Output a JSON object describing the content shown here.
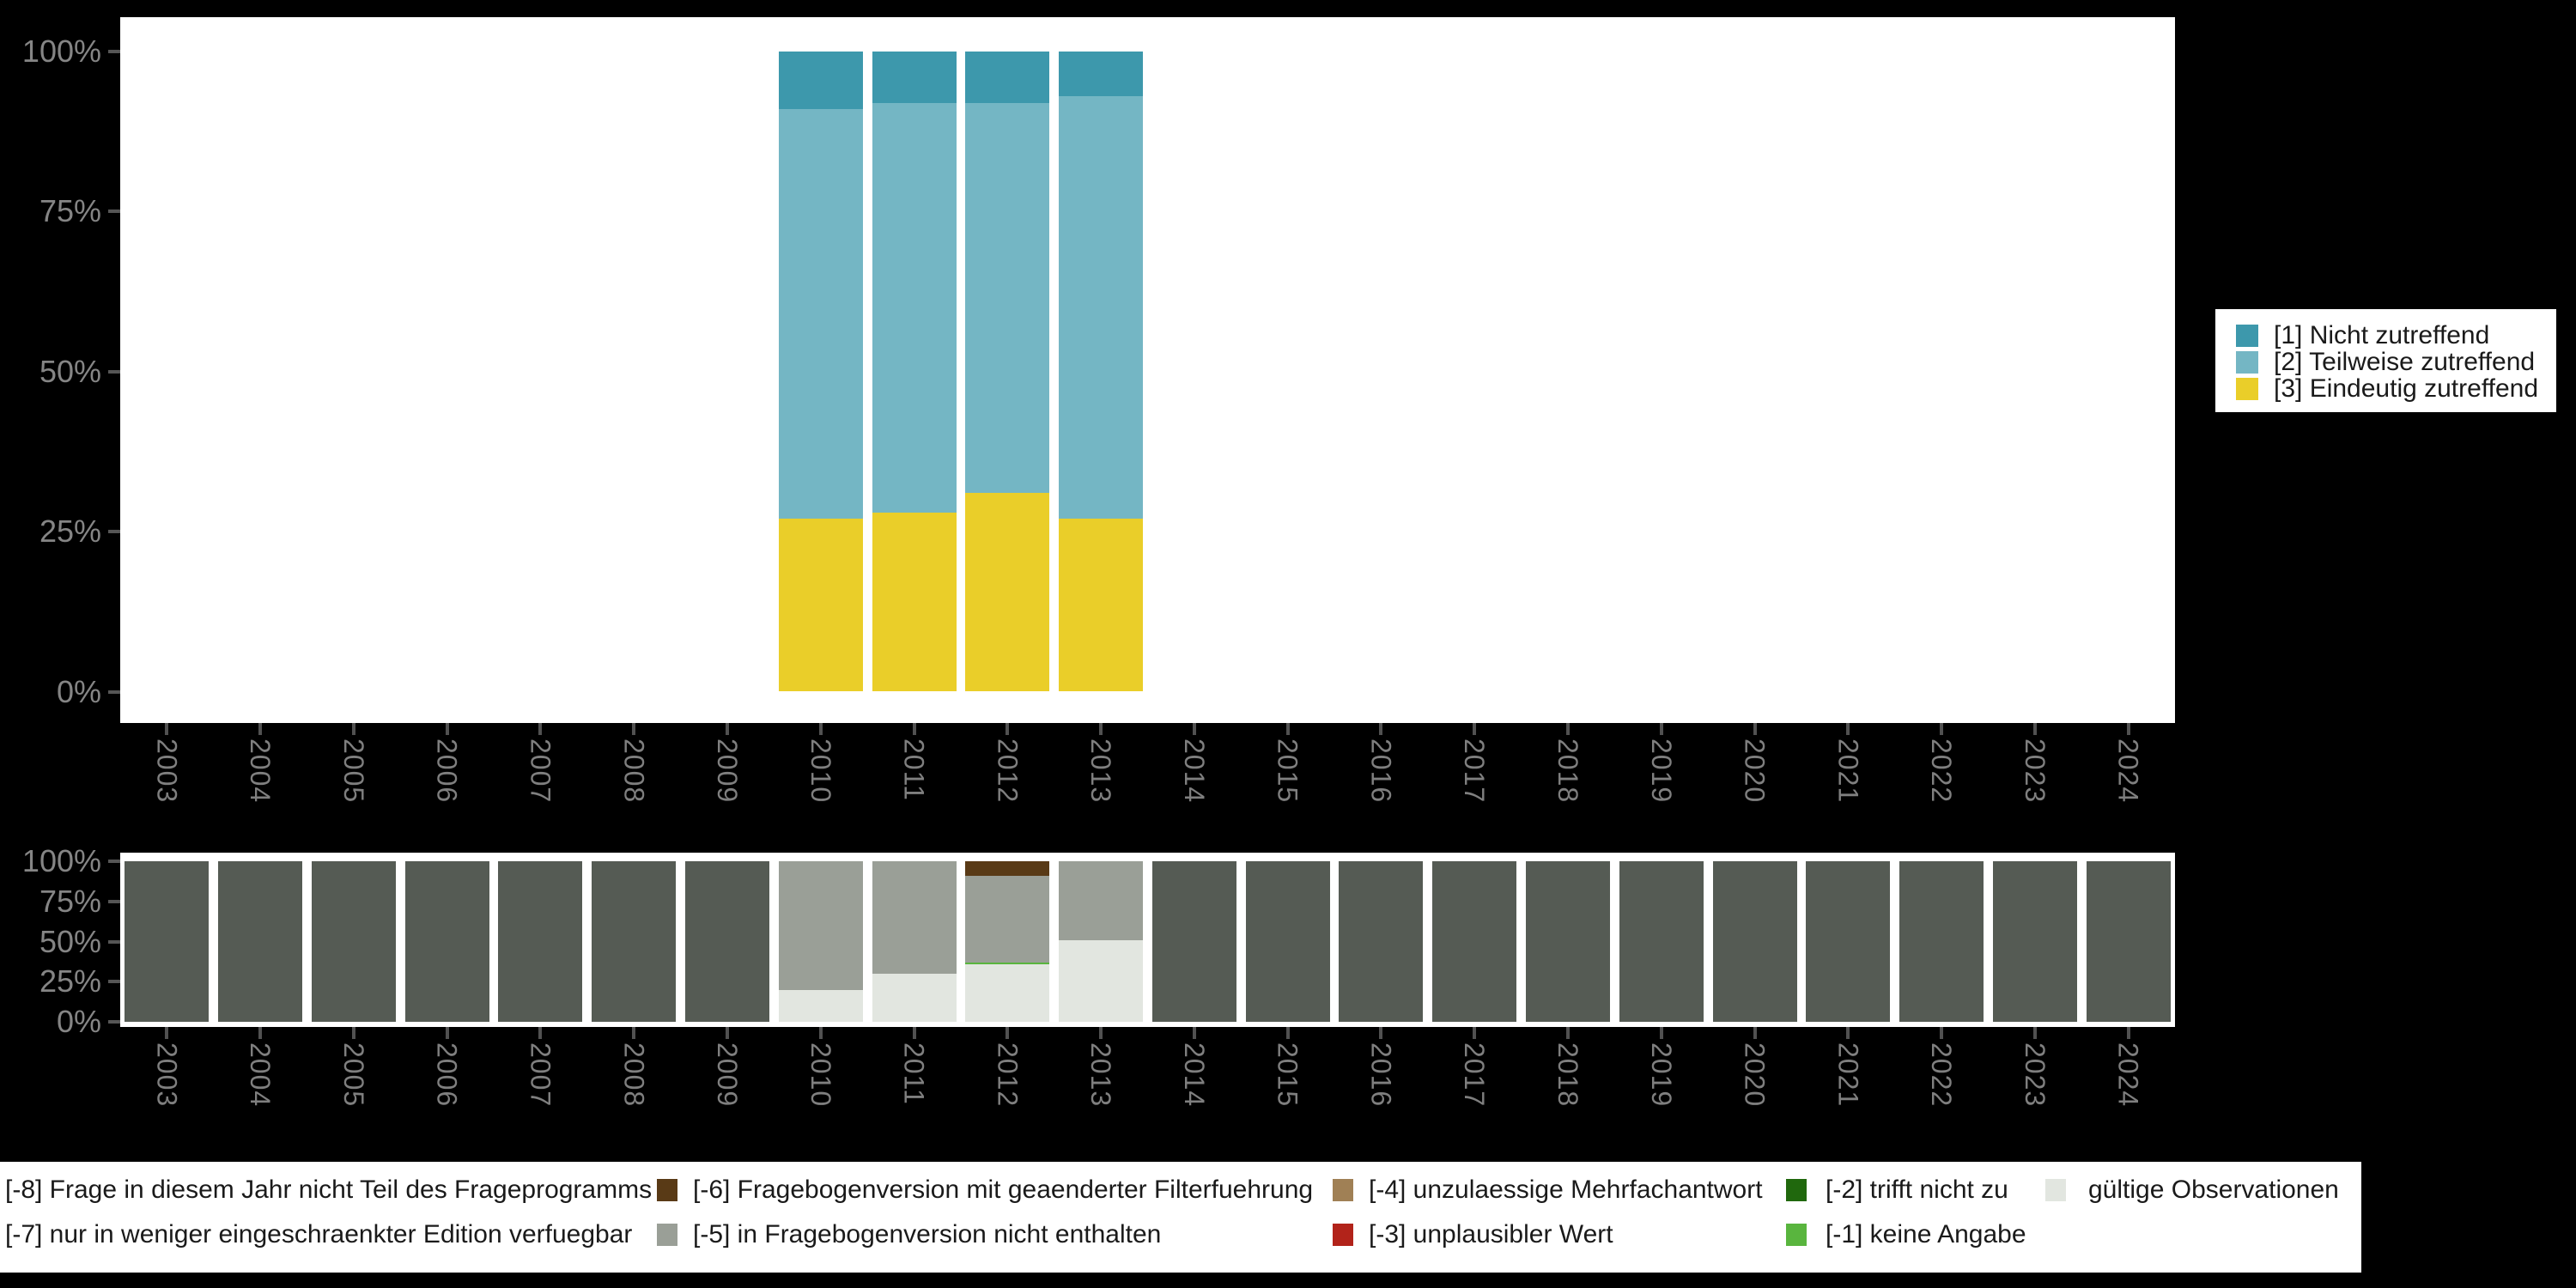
{
  "background_color": "#000000",
  "plot_background_color": "#ffffff",
  "axis_text_color": "#858585",
  "y_axis_tick_labels": [
    "100%",
    "75%",
    "50%",
    "25%",
    "0%"
  ],
  "legend_top": {
    "items": [
      {
        "label": "[1] Nicht zutreffend",
        "color": "#3d98ac"
      },
      {
        "label": "[2] Teilweise zutreffend",
        "color": "#74b6c4"
      },
      {
        "label": "[3] Eindeutig zutreffend",
        "color": "#eace29"
      }
    ]
  },
  "legend_bottom": {
    "rows": [
      [
        {
          "label": "[-8] Frage in diesem Jahr nicht Teil des Frageprogramms",
          "color": null
        },
        {
          "label": "[-6] Fragebogenversion mit geaenderter Filterfuehrung",
          "color": "#593a16"
        },
        {
          "label": "[-4] unzulaessige Mehrfachantwort",
          "color": "#a08055"
        },
        {
          "label": "[-2] trifft nicht zu",
          "color": "#20680d"
        },
        {
          "label": "gültige Observationen",
          "color": "#e2e6e0"
        }
      ],
      [
        {
          "label": "[-7] nur in weniger eingeschraenkter Edition verfuegbar",
          "color": null
        },
        {
          "label": "[-5] in Fragebogenversion nicht enthalten",
          "color": "#9a9f97"
        },
        {
          "label": "[-3] unplausibler Wert",
          "color": "#b2231a"
        },
        {
          "label": "[-1] keine Angabe",
          "color": "#59b53e"
        }
      ]
    ]
  },
  "chart_data": [
    {
      "type": "bar",
      "stacked": true,
      "units": "percent",
      "ylim": [
        0,
        100
      ],
      "grid": false,
      "legend_position": "right",
      "ytick_labels": [
        "100%",
        "75%",
        "50%",
        "25%",
        "0%"
      ],
      "x": [
        "2003",
        "2004",
        "2005",
        "2006",
        "2007",
        "2008",
        "2009",
        "2010",
        "2011",
        "2012",
        "2013",
        "2014",
        "2015",
        "2016",
        "2017",
        "2018",
        "2019",
        "2020",
        "2021",
        "2022",
        "2023",
        "2024"
      ],
      "series": [
        {
          "name": "[1] Nicht zutreffend",
          "color": "#3d98ac",
          "values": [
            null,
            null,
            null,
            null,
            null,
            null,
            null,
            9,
            8,
            8,
            7,
            null,
            null,
            null,
            null,
            null,
            null,
            null,
            null,
            null,
            null,
            null
          ]
        },
        {
          "name": "[2] Teilweise zutreffend",
          "color": "#74b6c4",
          "values": [
            null,
            null,
            null,
            null,
            null,
            null,
            null,
            64,
            64,
            61,
            66,
            null,
            null,
            null,
            null,
            null,
            null,
            null,
            null,
            null,
            null,
            null
          ]
        },
        {
          "name": "[3] Eindeutig zutreffend",
          "color": "#eace29",
          "values": [
            null,
            null,
            null,
            null,
            null,
            null,
            null,
            27,
            28,
            31,
            27,
            null,
            null,
            null,
            null,
            null,
            null,
            null,
            null,
            null,
            null,
            null
          ]
        }
      ]
    },
    {
      "type": "bar",
      "stacked": true,
      "units": "percent",
      "ylim": [
        0,
        100
      ],
      "grid": false,
      "legend_position": "bottom",
      "ytick_labels": [
        "100%",
        "75%",
        "50%",
        "25%",
        "0%"
      ],
      "x": [
        "2003",
        "2004",
        "2005",
        "2006",
        "2007",
        "2008",
        "2009",
        "2010",
        "2011",
        "2012",
        "2013",
        "2014",
        "2015",
        "2016",
        "2017",
        "2018",
        "2019",
        "2020",
        "2021",
        "2022",
        "2023",
        "2024"
      ],
      "series": [
        {
          "name": "[-8] Frage in diesem Jahr nicht Teil des Frageprogramms",
          "color": "#555b54",
          "values": [
            100,
            100,
            100,
            100,
            100,
            100,
            100,
            null,
            null,
            null,
            null,
            100,
            100,
            100,
            100,
            100,
            100,
            100,
            100,
            100,
            100,
            100
          ]
        },
        {
          "name": "[-6] Fragebogenversion mit geaenderter Filterfuehrung",
          "color": "#593a16",
          "values": [
            null,
            null,
            null,
            null,
            null,
            null,
            null,
            null,
            null,
            9,
            null,
            null,
            null,
            null,
            null,
            null,
            null,
            null,
            null,
            null,
            null,
            null
          ]
        },
        {
          "name": "[-5] in Fragebogenversion nicht enthalten",
          "color": "#9a9f97",
          "values": [
            null,
            null,
            null,
            null,
            null,
            null,
            null,
            80,
            70,
            54,
            49,
            null,
            null,
            null,
            null,
            null,
            null,
            null,
            null,
            null,
            null,
            null
          ]
        },
        {
          "name": "[-1] keine Angabe",
          "color": "#59b53e",
          "values": [
            null,
            null,
            null,
            null,
            null,
            null,
            null,
            null,
            null,
            1,
            null,
            null,
            null,
            null,
            null,
            null,
            null,
            null,
            null,
            null,
            null,
            null
          ]
        },
        {
          "name": "gültige Observationen",
          "color": "#e2e6e0",
          "values": [
            null,
            null,
            null,
            null,
            null,
            null,
            null,
            20,
            30,
            36,
            51,
            null,
            null,
            null,
            null,
            null,
            null,
            null,
            null,
            null,
            null,
            null
          ]
        }
      ]
    }
  ]
}
